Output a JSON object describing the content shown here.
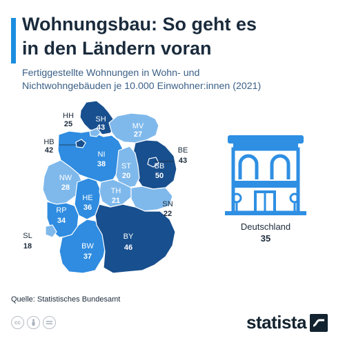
{
  "header": {
    "title_line1": "Wohnungsbau: So geht es",
    "title_line2": "in den Ländern voran",
    "subtitle_line1": "Fertiggestellte Wohnungen in Wohn- und",
    "subtitle_line2": "Nichtwohngebäuden je 10.000 Einwohner:innen (2021)"
  },
  "colors": {
    "accent": "#1b8de0",
    "dark": "#184f8e",
    "medium": "#2f8ce0",
    "light": "#7fb9ec",
    "text": "#1b2a3a",
    "building": "#2e8fe3"
  },
  "chart_data": {
    "type": "choropleth-map",
    "regions": [
      {
        "code": "SH",
        "value": 43
      },
      {
        "code": "HH",
        "value": 25
      },
      {
        "code": "MV",
        "value": 27
      },
      {
        "code": "HB",
        "value": 42
      },
      {
        "code": "NI",
        "value": 38
      },
      {
        "code": "BE",
        "value": 43
      },
      {
        "code": "BB",
        "value": 50
      },
      {
        "code": "ST",
        "value": 20
      },
      {
        "code": "NW",
        "value": 28
      },
      {
        "code": "TH",
        "value": 21
      },
      {
        "code": "HE",
        "value": 36
      },
      {
        "code": "SN",
        "value": 22
      },
      {
        "code": "RP",
        "value": 34
      },
      {
        "code": "SL",
        "value": 18
      },
      {
        "code": "BW",
        "value": 37
      },
      {
        "code": "BY",
        "value": 46
      }
    ],
    "national": {
      "label": "Deutschland",
      "value": 35
    }
  },
  "footer": {
    "source": "Quelle: Statistisches Bundesamt",
    "brand": "statista",
    "license_icons": [
      "cc-icon",
      "by-icon",
      "nd-icon"
    ]
  }
}
